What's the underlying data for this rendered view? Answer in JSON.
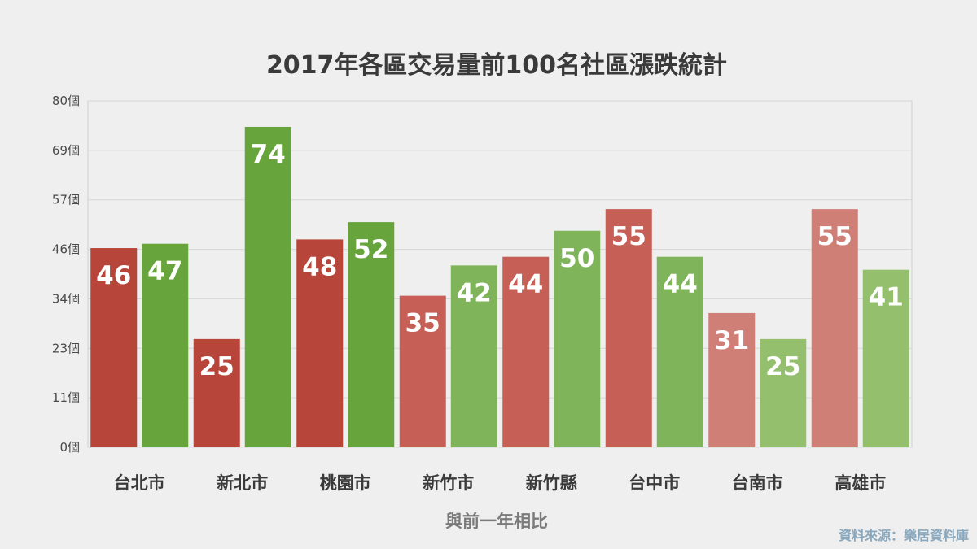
{
  "chart_data": {
    "type": "bar",
    "title": "2017年各區交易量前100名社區漲跌統計",
    "xlabel": "與前一年相比",
    "ylabel": "",
    "ylim": [
      0,
      80
    ],
    "yticks": [
      "0個",
      "11個",
      "23個",
      "34個",
      "46個",
      "57個",
      "69個",
      "80個"
    ],
    "ytick_values": [
      0,
      11.43,
      22.86,
      34.29,
      45.71,
      57.14,
      68.57,
      80
    ],
    "categories": [
      "台北市",
      "新北市",
      "桃園市",
      "新竹市",
      "新竹縣",
      "台中市",
      "台南市",
      "高雄市"
    ],
    "series": [
      {
        "values": [
          46,
          25,
          48,
          35,
          44,
          55,
          31,
          55
        ]
      },
      {
        "values": [
          47,
          74,
          52,
          42,
          50,
          44,
          25,
          41
        ]
      }
    ],
    "bar_colors": {
      "red": [
        "#b8453a",
        "#b8453a",
        "#b8453a",
        "#c65f55",
        "#c65f55",
        "#c65f55",
        "#d07f77",
        "#d07f77"
      ],
      "green": [
        "#67a43b",
        "#67a43b",
        "#67a43b",
        "#80b45a",
        "#80b45a",
        "#80b45a",
        "#94c06e",
        "#94c06e"
      ]
    },
    "grid": true,
    "legend": "none"
  },
  "source_note": "資料來源：樂居資料庫",
  "colors": {
    "background": "#efefef",
    "plot_background": "#efefef",
    "gridline": "#d6d6d6"
  }
}
